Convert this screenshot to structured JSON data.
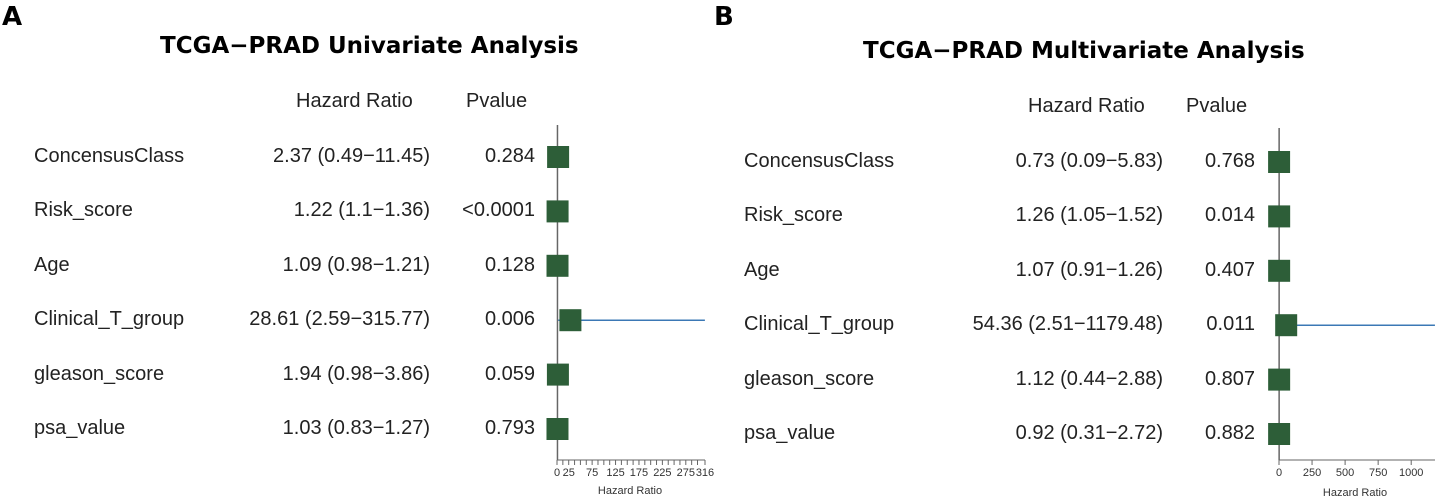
{
  "chart_data": [
    {
      "type": "forest",
      "panel_label": "A",
      "title": "TCGA−PRAD Univariate Analysis",
      "columns": {
        "hr": "Hazard Ratio",
        "p": "Pvalue"
      },
      "rows": [
        {
          "variable": "ConcensusClass",
          "hr_text": "2.37 (0.49−11.45)",
          "p": "0.284",
          "hr": 2.37,
          "lo": 0.49,
          "hi": 11.45
        },
        {
          "variable": "Risk_score",
          "hr_text": "1.22 (1.1−1.36)",
          "p": "<0.0001",
          "hr": 1.22,
          "lo": 1.1,
          "hi": 1.36
        },
        {
          "variable": "Age",
          "hr_text": "1.09 (0.98−1.21)",
          "p": "0.128",
          "hr": 1.09,
          "lo": 0.98,
          "hi": 1.21
        },
        {
          "variable": "Clinical_T_group",
          "hr_text": "28.61 (2.59−315.77)",
          "p": "0.006",
          "hr": 28.61,
          "lo": 2.59,
          "hi": 315.77
        },
        {
          "variable": "gleason_score",
          "hr_text": "1.94 (0.98−3.86)",
          "p": "0.059",
          "hr": 1.94,
          "lo": 0.98,
          "hi": 3.86
        },
        {
          "variable": "psa_value",
          "hr_text": "1.03 (0.83−1.27)",
          "p": "0.793",
          "hr": 1.03,
          "lo": 0.83,
          "hi": 1.27
        }
      ],
      "xlabel": "Hazard Ratio",
      "xlim": [
        0,
        316
      ],
      "ticks": [
        {
          "value": 0,
          "label": "0"
        },
        {
          "value": 25,
          "label": "25"
        },
        {
          "value": 75,
          "label": "75"
        },
        {
          "value": 125,
          "label": "125"
        },
        {
          "value": 175,
          "label": "175"
        },
        {
          "value": 225,
          "label": "225"
        },
        {
          "value": 275,
          "label": "275"
        },
        {
          "value": 316,
          "label": "316"
        }
      ],
      "minor_ticks": [
        0,
        12.5,
        25,
        37.5,
        50,
        62.5,
        75,
        87.5,
        100,
        112.5,
        125,
        137.5,
        150,
        162.5,
        175,
        187.5,
        200,
        212.5,
        225,
        237.5,
        250,
        262.5,
        275,
        287.5,
        300,
        316
      ],
      "ref_value": 1,
      "box_color": "#2d5e38",
      "line_color": "#3b78b5"
    },
    {
      "type": "forest",
      "panel_label": "B",
      "title": "TCGA−PRAD Multivariate Analysis",
      "columns": {
        "hr": "Hazard Ratio",
        "p": "Pvalue"
      },
      "rows": [
        {
          "variable": "ConcensusClass",
          "hr_text": "0.73 (0.09−5.83)",
          "p": "0.768",
          "hr": 0.73,
          "lo": 0.09,
          "hi": 5.83
        },
        {
          "variable": "Risk_score",
          "hr_text": "1.26 (1.05−1.52)",
          "p": "0.014",
          "hr": 1.26,
          "lo": 1.05,
          "hi": 1.52
        },
        {
          "variable": "Age",
          "hr_text": "1.07 (0.91−1.26)",
          "p": "0.407",
          "hr": 1.07,
          "lo": 0.91,
          "hi": 1.26
        },
        {
          "variable": "Clinical_T_group",
          "hr_text": "54.36 (2.51−1179.48)",
          "p": "0.011",
          "hr": 54.36,
          "lo": 2.51,
          "hi": 1179.48
        },
        {
          "variable": "gleason_score",
          "hr_text": "1.12 (0.44−2.88)",
          "p": "0.807",
          "hr": 1.12,
          "lo": 0.44,
          "hi": 2.88
        },
        {
          "variable": "psa_value",
          "hr_text": "0.92 (0.31−2.72)",
          "p": "0.882",
          "hr": 0.92,
          "lo": 0.31,
          "hi": 2.72
        }
      ],
      "xlabel": "Hazard Ratio",
      "xlim": [
        0,
        1180
      ],
      "ticks": [
        {
          "value": 0,
          "label": "0"
        },
        {
          "value": 250,
          "label": "250"
        },
        {
          "value": 500,
          "label": "500"
        },
        {
          "value": 750,
          "label": "750"
        },
        {
          "value": 1000,
          "label": "1000"
        }
      ],
      "minor_ticks": [
        0,
        250,
        500,
        750,
        1000
      ],
      "ref_value": 1,
      "box_color": "#2d5e38",
      "line_color": "#3b78b5"
    }
  ]
}
